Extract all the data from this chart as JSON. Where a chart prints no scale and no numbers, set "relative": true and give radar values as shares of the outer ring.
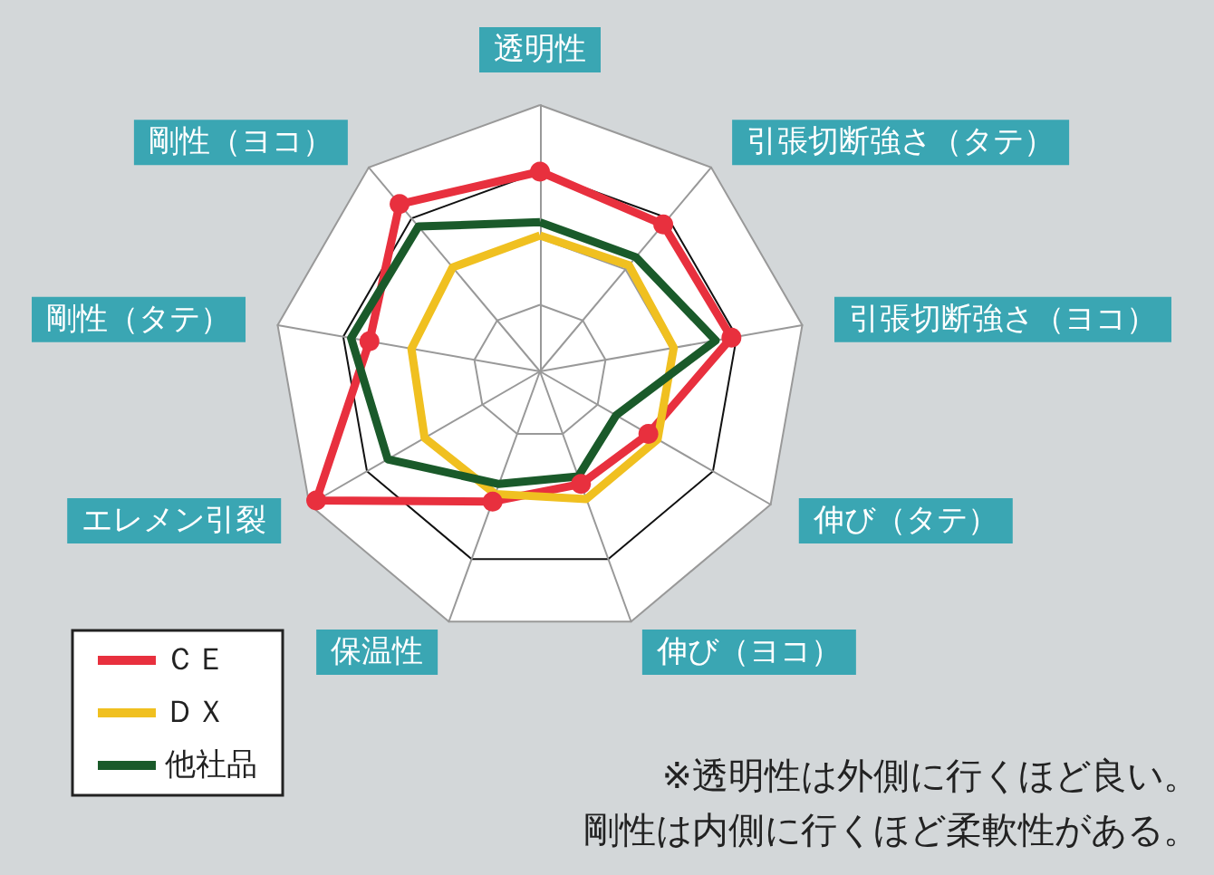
{
  "chart_data": {
    "type": "radar",
    "relative": true,
    "legend": "bottom left",
    "grid": true,
    "categories": [
      "透明性",
      "引張切断強さ（タテ）",
      "引張切断強さ（ヨコ）",
      "伸び（タテ）",
      "伸び（ヨコ）",
      "保温性",
      "エレメン引裂",
      "剛性（タテ）",
      "剛性（ヨコ）"
    ],
    "series": [
      {
        "name": "ＣＥ",
        "color": "#e8303e",
        "marker": "circle",
        "values": [
          0.75,
          0.72,
          0.73,
          0.47,
          0.45,
          0.52,
          0.97,
          0.65,
          0.82
        ]
      },
      {
        "name": "ＤＸ",
        "color": "#f0c020",
        "marker": "none",
        "values": [
          0.51,
          0.52,
          0.51,
          0.51,
          0.51,
          0.49,
          0.5,
          0.49,
          0.51
        ]
      },
      {
        "name": "他社品",
        "color": "#1a5a2a",
        "marker": "none",
        "values": [
          0.56,
          0.56,
          0.67,
          0.33,
          0.42,
          0.45,
          0.66,
          0.72,
          0.71
        ]
      }
    ],
    "annotations": [
      "※透明性は外側に行くほど良い。",
      "剛性は内側に行くほど柔軟性がある。"
    ]
  }
}
